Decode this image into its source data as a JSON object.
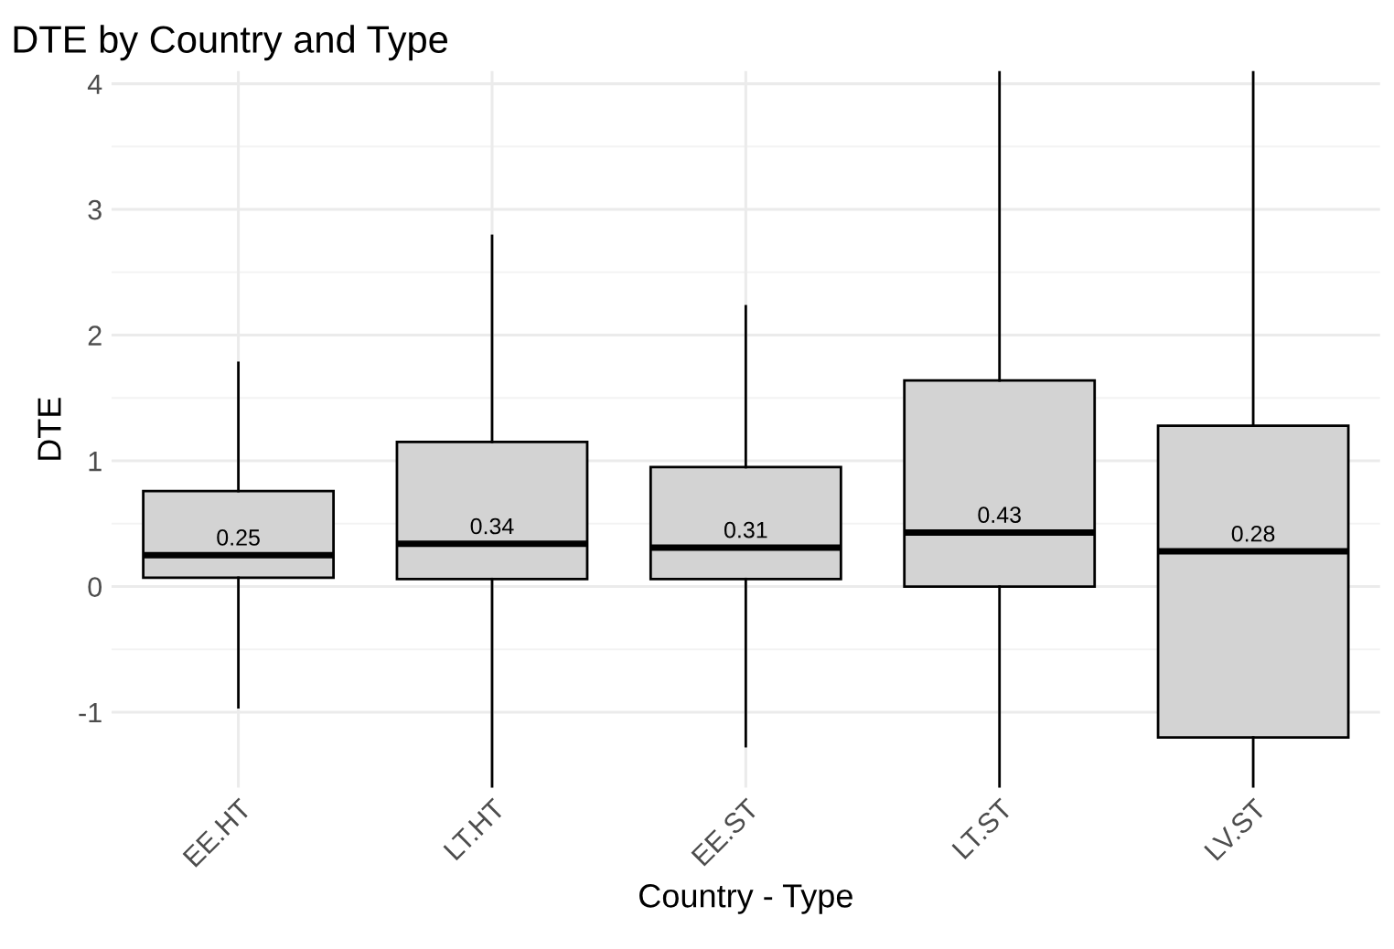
{
  "chart_data": {
    "type": "box",
    "title": "DTE by Country and Type",
    "xlabel": "Country - Type",
    "ylabel": "DTE",
    "categories": [
      "EE.HT",
      "LT.HT",
      "EE.ST",
      "LT.ST",
      "LV.ST"
    ],
    "boxes": [
      {
        "low": -0.96,
        "q1": 0.07,
        "median": 0.25,
        "q3": 0.76,
        "high": 1.78
      },
      {
        "low": -1.6,
        "q1": 0.06,
        "median": 0.34,
        "q3": 1.15,
        "high": 2.79
      },
      {
        "low": -1.27,
        "q1": 0.06,
        "median": 0.31,
        "q3": 0.95,
        "high": 2.23
      },
      {
        "low": -1.6,
        "q1": 0.0,
        "median": 0.43,
        "q3": 1.64,
        "high": 4.1
      },
      {
        "low": -1.6,
        "q1": -1.2,
        "median": 0.28,
        "q3": 1.28,
        "high": 4.1
      }
    ],
    "value_labels": [
      "0.25",
      "0.34",
      "0.31",
      "0.43",
      "0.28"
    ],
    "color": "#d3d3d3",
    "ylim": [
      -1.6,
      4.1
    ],
    "yticks": [
      {
        "value": -1,
        "label": "-1"
      },
      0,
      1,
      2,
      3,
      4
    ],
    "grid": true
  }
}
